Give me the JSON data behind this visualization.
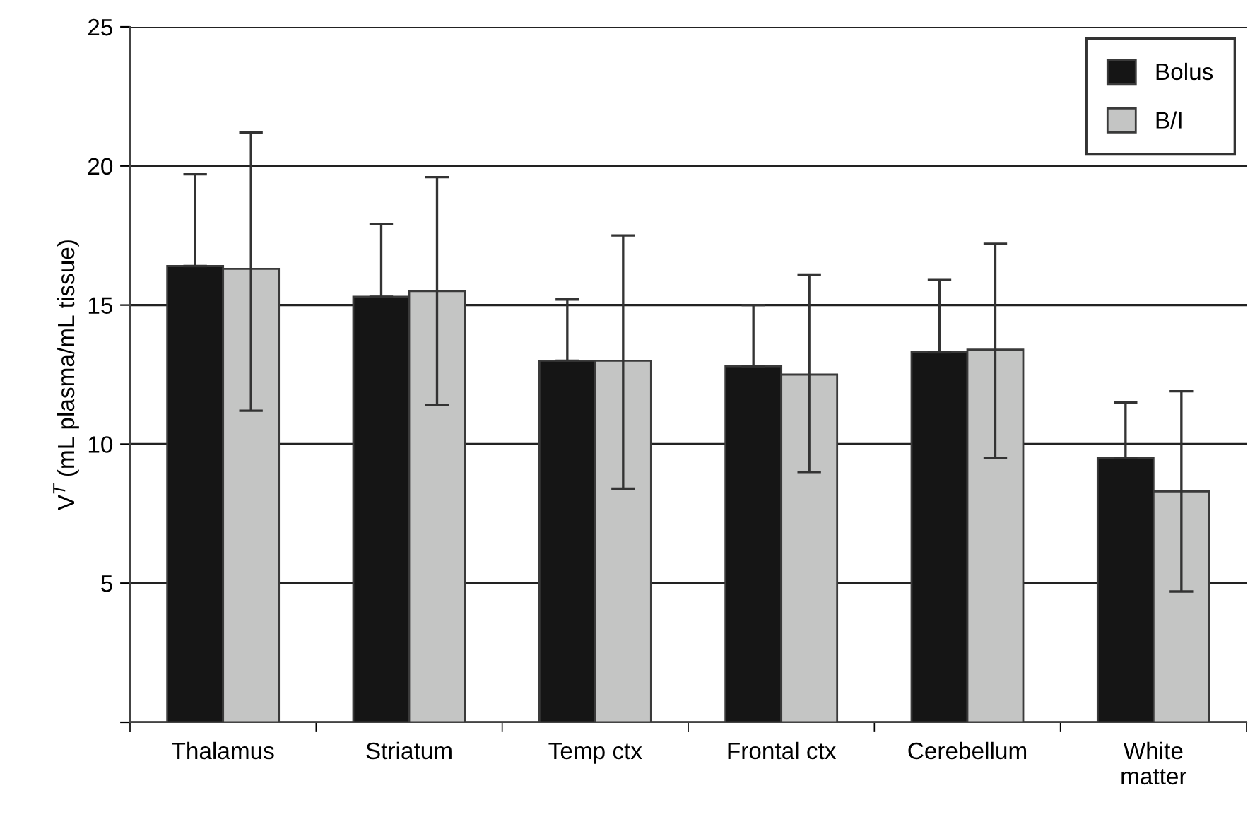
{
  "chart_data": {
    "type": "bar",
    "ylabel": "V$^{T}$ (mL plasma/mL tissue)",
    "categories": [
      "Thalamus",
      "Striatum",
      "Temp ctx",
      "Frontal ctx",
      "Cerebellum",
      "White\nmatter"
    ],
    "series": [
      {
        "name": "Bolus",
        "color": "#151515",
        "values": [
          16.4,
          15.3,
          13.0,
          12.8,
          13.3,
          9.5
        ],
        "errors": [
          [
            16.4,
            19.7
          ],
          [
            15.3,
            17.9
          ],
          [
            13.0,
            15.2
          ],
          [
            12.8,
            15.0
          ],
          [
            13.3,
            15.9
          ],
          [
            9.5,
            11.5
          ]
        ]
      },
      {
        "name": "B/I",
        "color": "#c4c5c4",
        "values": [
          16.3,
          15.5,
          13.0,
          12.5,
          13.4,
          8.3
        ],
        "errors": [
          [
            11.2,
            21.2
          ],
          [
            11.4,
            19.6
          ],
          [
            8.4,
            17.5
          ],
          [
            9.0,
            16.1
          ],
          [
            9.5,
            17.2
          ],
          [
            4.7,
            11.9
          ]
        ]
      }
    ],
    "ylim": [
      0,
      25
    ],
    "yticks": [
      {
        "value": 0,
        "label": null
      },
      5,
      10,
      15,
      20,
      25
    ],
    "grid": "y",
    "legend": "top right"
  }
}
